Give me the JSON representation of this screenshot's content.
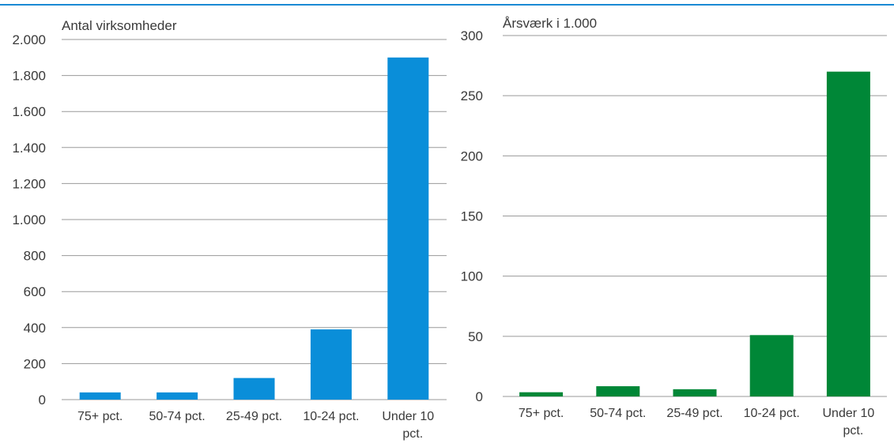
{
  "colors": {
    "accent_line": "#1a8ad4"
  },
  "chart_data": [
    {
      "type": "bar",
      "ylabel": "Antal virksomheder",
      "categories": [
        "75+ pct.",
        "50-74 pct.",
        "25-49 pct.",
        "10-24 pct.",
        "Under 10 pct."
      ],
      "values": [
        40,
        40,
        120,
        390,
        1900
      ],
      "ylim": [
        0,
        2000
      ],
      "yticks": [
        0,
        200,
        400,
        600,
        800,
        1000,
        1200,
        1400,
        1600,
        1800,
        2000
      ],
      "ytick_labels": [
        "0",
        "200",
        "400",
        "600",
        "800",
        "1.000",
        "1.200",
        "1.400",
        "1.600",
        "1.800",
        "2.000"
      ],
      "color": "#0a8ed9",
      "grid": true,
      "legend": "none"
    },
    {
      "type": "bar",
      "ylabel": "Årsværk i 1.000",
      "categories": [
        "75+ pct.",
        "50-74 pct.",
        "25-49 pct.",
        "10-24 pct.",
        "Under 10 pct."
      ],
      "values": [
        3.5,
        8.5,
        6,
        51,
        270
      ],
      "ylim": [
        0,
        300
      ],
      "yticks": [
        0,
        50,
        100,
        150,
        200,
        250,
        300
      ],
      "ytick_labels": [
        "0",
        "50",
        "100",
        "150",
        "200",
        "250",
        "300"
      ],
      "color": "#008737",
      "grid": true,
      "legend": "none"
    }
  ]
}
